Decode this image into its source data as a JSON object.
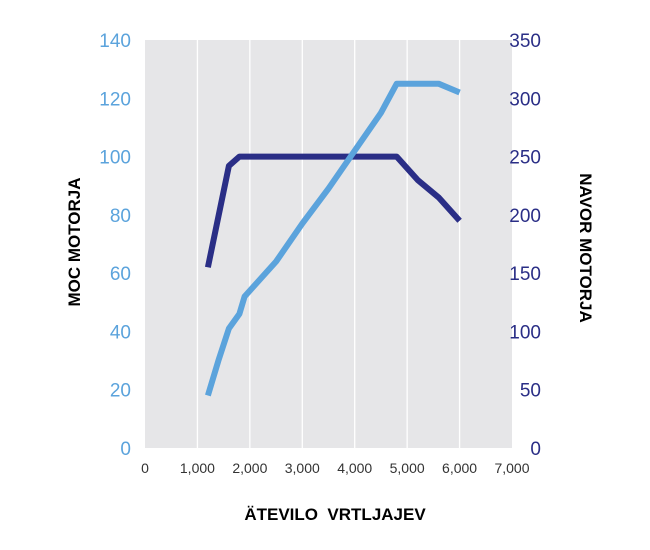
{
  "chart_data": {
    "type": "line",
    "title": "",
    "xlabel": "ÄTEVILO  VRTLJAJEV",
    "ylabel_left": "MOC MOTORJA",
    "ylabel_right": "NAVOR MOTORJA",
    "xlim": [
      0,
      7000
    ],
    "ylim_left": [
      0,
      140
    ],
    "ylim_right": [
      0,
      350
    ],
    "x_ticks": [
      0,
      1000,
      2000,
      3000,
      4000,
      5000,
      6000,
      7000
    ],
    "x_tick_labels": [
      "0",
      "1,000",
      "2,000",
      "3,000",
      "4,000",
      "5,000",
      "6,000",
      "7,000"
    ],
    "y_left_ticks": [
      "0",
      "20",
      "40",
      "60",
      "80",
      "100",
      "120",
      "140"
    ],
    "y_right_ticks": [
      "0",
      "50",
      "100",
      "150",
      "200",
      "250",
      "300",
      "350"
    ],
    "grid": "vertical",
    "legend": "none",
    "series": [
      {
        "axis": "right",
        "color": "#2a2e86",
        "x": [
          1200,
          1600,
          1800,
          2500,
          3000,
          3500,
          4000,
          4500,
          4800,
          5200,
          5600,
          6000
        ],
        "values": [
          155,
          242,
          250,
          250,
          250,
          250,
          250,
          250,
          250,
          230,
          215,
          195
        ]
      },
      {
        "axis": "left",
        "color": "#5ba3dc",
        "x": [
          1200,
          1400,
          1600,
          1800,
          1900,
          2000,
          2500,
          3000,
          3500,
          4000,
          4500,
          4800,
          5200,
          5600,
          6000
        ],
        "values": [
          18,
          30,
          41,
          46,
          52,
          54,
          64,
          77,
          89,
          102,
          115,
          125,
          125,
          125,
          122
        ]
      }
    ]
  }
}
